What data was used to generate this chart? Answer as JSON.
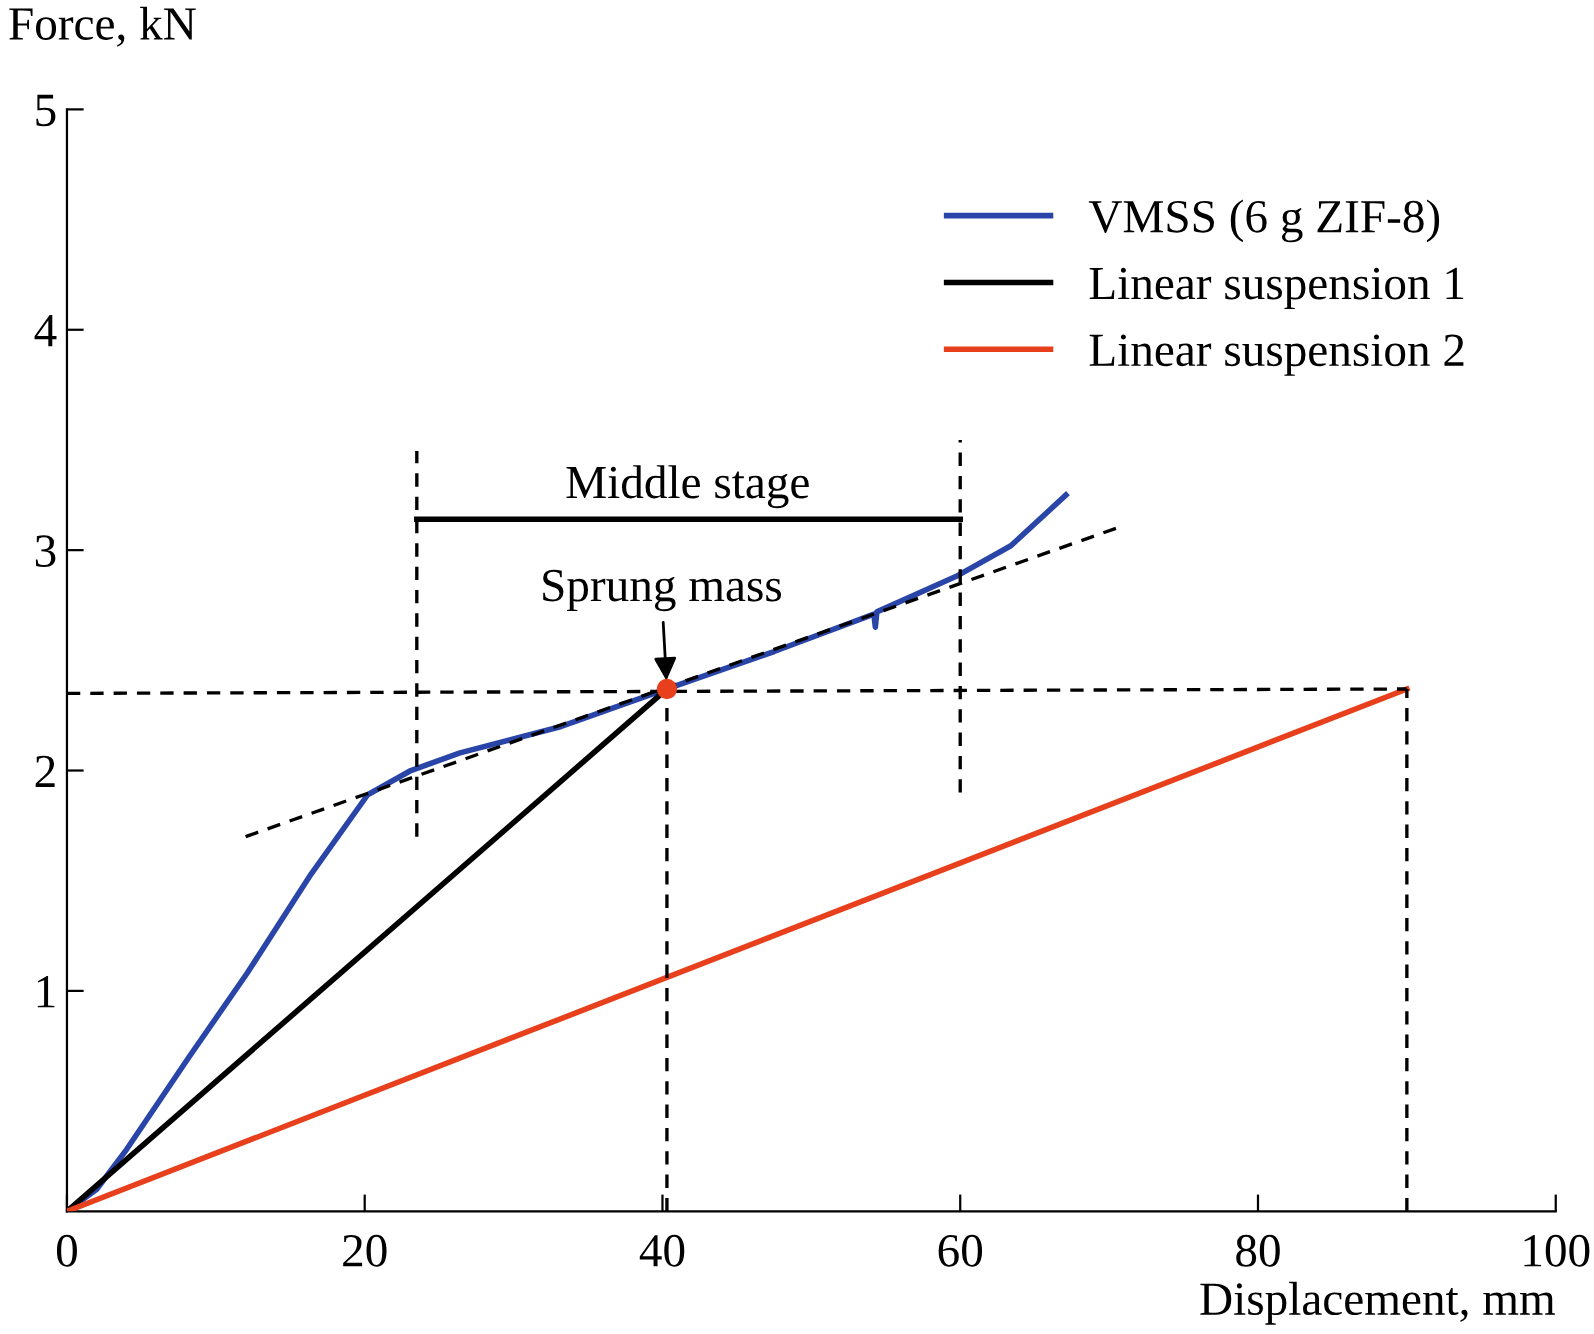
{
  "chart_data": {
    "type": "line",
    "xlabel": "Displacement, mm",
    "ylabel": "Force, kN",
    "xlim": [
      0,
      100
    ],
    "ylim": [
      0,
      5
    ],
    "xticks": [
      0,
      20,
      40,
      60,
      80,
      100
    ],
    "yticks": [
      1,
      2,
      3,
      4,
      5
    ],
    "grid": false,
    "legend": "top right",
    "line_style": "solid",
    "marker": "none",
    "series": [
      {
        "name": "VMSS (6 g ZIF-8)",
        "color": "#2a45a8",
        "x": [
          0,
          2,
          4,
          6,
          8.2,
          12.1,
          16.4,
          20.2,
          23.1,
          26.4,
          33.2,
          40.3,
          47.5,
          54.2,
          54.3,
          54.4,
          59.7,
          63.4,
          67.1
        ],
        "values": [
          0,
          0.1,
          0.28,
          0.48,
          0.7,
          1.08,
          1.53,
          1.89,
          2.0,
          2.08,
          2.2,
          2.37,
          2.54,
          2.71,
          2.65,
          2.72,
          2.88,
          3.02,
          3.25
        ]
      },
      {
        "name": "Linear suspension 1",
        "color": "#000000",
        "x": [
          0,
          40.3
        ],
        "values": [
          0,
          2.37
        ]
      },
      {
        "name": "Linear suspension 2",
        "color": "#e8401c",
        "x": [
          0,
          90
        ],
        "values": [
          0,
          2.37
        ]
      },
      {
        "color": "#000000",
        "line_style": "dashed",
        "x": [
          12,
          70.5
        ],
        "values": [
          1.7,
          3.1
        ]
      },
      {
        "color": "#000000",
        "line_style": "dashed",
        "x": [
          23.5,
          23.5
        ],
        "values": [
          1.7,
          3.45
        ]
      },
      {
        "color": "#000000",
        "line_style": "dashed",
        "x": [
          60,
          60
        ],
        "values": [
          1.9,
          3.5
        ]
      },
      {
        "color": "#000000",
        "line_style": "dashed",
        "x": [
          40.3,
          40.3
        ],
        "values": [
          0,
          2.37
        ]
      },
      {
        "color": "#000000",
        "line_style": "dashed",
        "x": [
          90,
          90
        ],
        "values": [
          0,
          2.37
        ]
      },
      {
        "color": "#000000",
        "line_style": "dashed",
        "x": [
          0,
          90
        ],
        "values": [
          2.35,
          2.37
        ]
      },
      {
        "color": "#000000",
        "x": [
          23.5,
          60
        ],
        "values": [
          3.14,
          3.14
        ]
      },
      {
        "type": "scatter",
        "color": "#e8401c",
        "marker": "circle",
        "x": [
          40.3
        ],
        "values": [
          2.37
        ]
      }
    ],
    "annotations": [
      {
        "text": "Middle stage",
        "x": 41.7,
        "y": 3.14
      },
      {
        "text": "Sprung mass",
        "x": 40.3,
        "y": 2.37
      }
    ]
  }
}
